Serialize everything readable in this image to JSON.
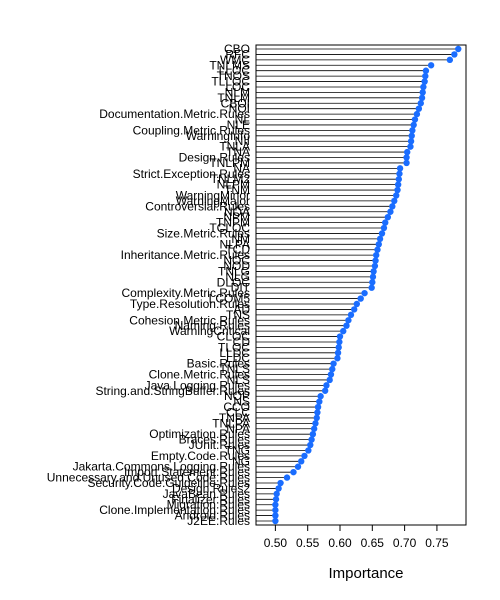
{
  "chart_data": {
    "type": "dotplot",
    "title": "",
    "xlabel": "Importance",
    "ylabel": "",
    "xlim": [
      0.47,
      0.795
    ],
    "x_ticks": [
      "0.50",
      "0.55",
      "0.60",
      "0.65",
      "0.70",
      "0.75"
    ],
    "x_tick_values": [
      0.5,
      0.55,
      0.6,
      0.65,
      0.7,
      0.75
    ],
    "grid": false,
    "point_color": "#1a6dff",
    "categories": [
      "CBO",
      "RFC",
      "WMC",
      "TNLMS",
      "LLOC",
      "TNOS",
      "TLLOC",
      "LOC",
      "NLM",
      "TNLM",
      "CBOI",
      "NOI",
      "Documentation.Metric.Rules",
      "NL",
      "NLE",
      "Coupling.Metric.Rules",
      "WarningInfo",
      "NII",
      "TNLA",
      "TNA",
      "Design.Rules",
      "TNLPM",
      "NA",
      "Strict.Exception.Rules",
      "TNLM2",
      "NLPM",
      "TNM",
      "WarningMinor",
      "WarningMajor",
      "Controversial.Rules",
      "NOA",
      "NPM",
      "TNPM",
      "TCLOC",
      "Size.Metric.Rules",
      "NM",
      "NLPA",
      "TCD",
      "Inheritance.Metric.Rules",
      "NOC",
      "NOD",
      "TNLG",
      "NLG",
      "DLOC",
      "DIT",
      "Complexity.Metric.Rules",
      "LCOM5",
      "Type.Resolution.Rules",
      "AD",
      "TNS",
      "Cohesion.Metric.Rules",
      "Naming.Rules",
      "WarningCritical",
      "CLOC",
      "CD",
      "TLOC",
      "LLDC",
      "LDC",
      "Basic.Rules",
      "TNLS",
      "Clone.Metric.Rules",
      "NLS",
      "Java.Logging.Rules",
      "String.and.StringBuffer.Rules",
      "NOP",
      "NS",
      "CCO",
      "CLC",
      "TNPA",
      "TNLPA",
      "NPA",
      "Optimization.Rules",
      "Braces.Rules",
      "JUnit.Rules",
      "TNG",
      "Empty.Code.Rules",
      "NG",
      "Jakarta.Commons.Logging.Rules",
      "Import.Statement.Rules",
      "Unnecessary.and.Unused.Code.Rules",
      "Security.Code.Guideline.Rules",
      "Design.Rules2",
      "JavaBean.Rules",
      "Finalizer.Rules",
      "Migration.Rules",
      "Clone.Implementation.Rules",
      "Android.Rules",
      "J2EE.Rules"
    ],
    "values": [
      0.783,
      0.777,
      0.77,
      0.741,
      0.733,
      0.732,
      0.731,
      0.729,
      0.728,
      0.727,
      0.725,
      0.722,
      0.719,
      0.716,
      0.714,
      0.712,
      0.711,
      0.71,
      0.709,
      0.704,
      0.703,
      0.703,
      0.693,
      0.692,
      0.691,
      0.69,
      0.689,
      0.687,
      0.684,
      0.681,
      0.678,
      0.674,
      0.67,
      0.668,
      0.665,
      0.662,
      0.66,
      0.658,
      0.656,
      0.655,
      0.654,
      0.652,
      0.651,
      0.65,
      0.649,
      0.638,
      0.632,
      0.626,
      0.622,
      0.617,
      0.613,
      0.61,
      0.605,
      0.6,
      0.599,
      0.598,
      0.597,
      0.596,
      0.59,
      0.588,
      0.586,
      0.584,
      0.579,
      0.577,
      0.57,
      0.568,
      0.566,
      0.565,
      0.564,
      0.562,
      0.56,
      0.558,
      0.556,
      0.554,
      0.551,
      0.545,
      0.54,
      0.535,
      0.528,
      0.518,
      0.508,
      0.505,
      0.502,
      0.501,
      0.5,
      0.5,
      0.5,
      0.5
    ]
  }
}
